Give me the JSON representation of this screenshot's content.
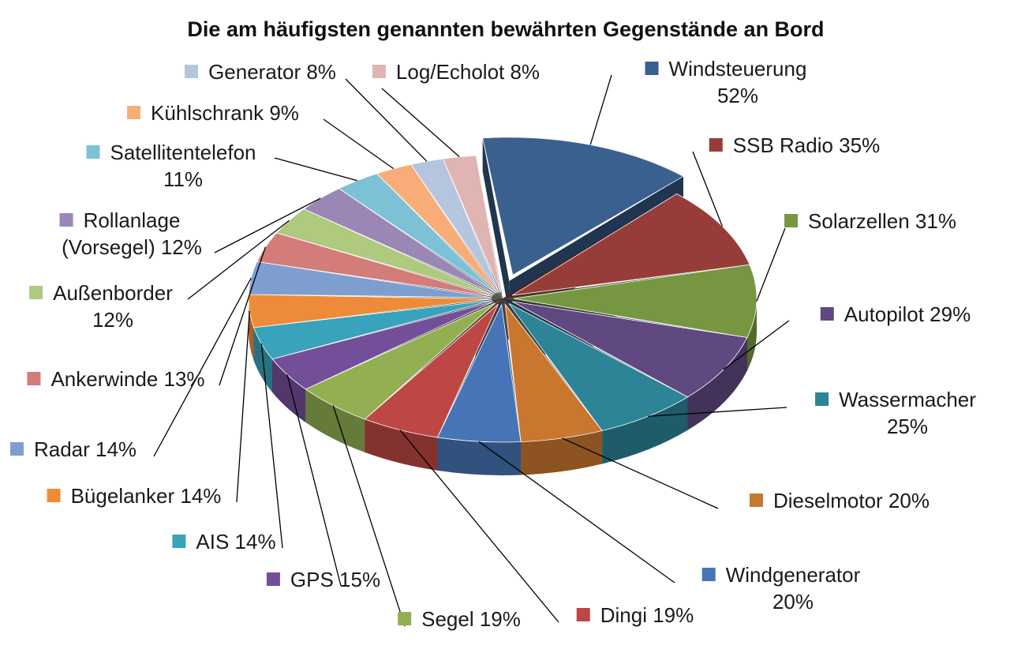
{
  "chart_data": {
    "type": "pie",
    "title": "Die am häufigsten genannten bewährten Gegenstände an Bord",
    "unit": "%",
    "exploded": [
      "Windsteuerung"
    ],
    "categories": [
      "Windsteuerung",
      "SSB Radio",
      "Solarzellen",
      "Autopilot",
      "Wassermacher",
      "Dieselmotor",
      "Windgenerator",
      "Dingi",
      "Segel",
      "GPS",
      "AIS",
      "Bügelanker",
      "Radar",
      "Ankerwinde",
      "Außenborder",
      "Rollanlage (Vorsegel)",
      "Satellitentelefon",
      "Kühlschrank",
      "Generator",
      "Log/Echolot"
    ],
    "values": [
      52,
      35,
      31,
      29,
      25,
      20,
      20,
      19,
      19,
      15,
      14,
      14,
      14,
      13,
      12,
      12,
      11,
      9,
      8,
      8
    ],
    "labels": [
      [
        "Windsteuerung",
        "52%"
      ],
      [
        "SSB Radio 35%"
      ],
      [
        "Solarzellen 31%"
      ],
      [
        "Autopilot 29%"
      ],
      [
        "Wassermacher",
        "25%"
      ],
      [
        "Dieselmotor 20%"
      ],
      [
        "Windgenerator",
        "20%"
      ],
      [
        "Dingi 19%"
      ],
      [
        "Segel 19%"
      ],
      [
        "GPS 15%"
      ],
      [
        "AIS 14%"
      ],
      [
        "Bügelanker 14%"
      ],
      [
        "Radar 14%"
      ],
      [
        "Ankerwinde 13%"
      ],
      [
        "Außenborder",
        "12%"
      ],
      [
        "Rollanlage",
        "(Vorsegel) 12%"
      ],
      [
        "Satellitentelefon",
        "11%"
      ],
      [
        "Kühlschrank 9%"
      ],
      [
        "Generator 8%"
      ],
      [
        "Log/Echolot 8%"
      ]
    ],
    "colors": [
      "#3A6090",
      "#963D3A",
      "#779641",
      "#5F4980",
      "#2C8496",
      "#C9772F",
      "#4674B6",
      "#BC4744",
      "#92AF52",
      "#734F9A",
      "#38A3BA",
      "#EE8B38",
      "#7E9ECF",
      "#D37C79",
      "#AFC97E",
      "#9A87B6",
      "#7DC1D6",
      "#F8AD79",
      "#B6C5DE",
      "#E0B4B3"
    ],
    "legend": "none"
  }
}
